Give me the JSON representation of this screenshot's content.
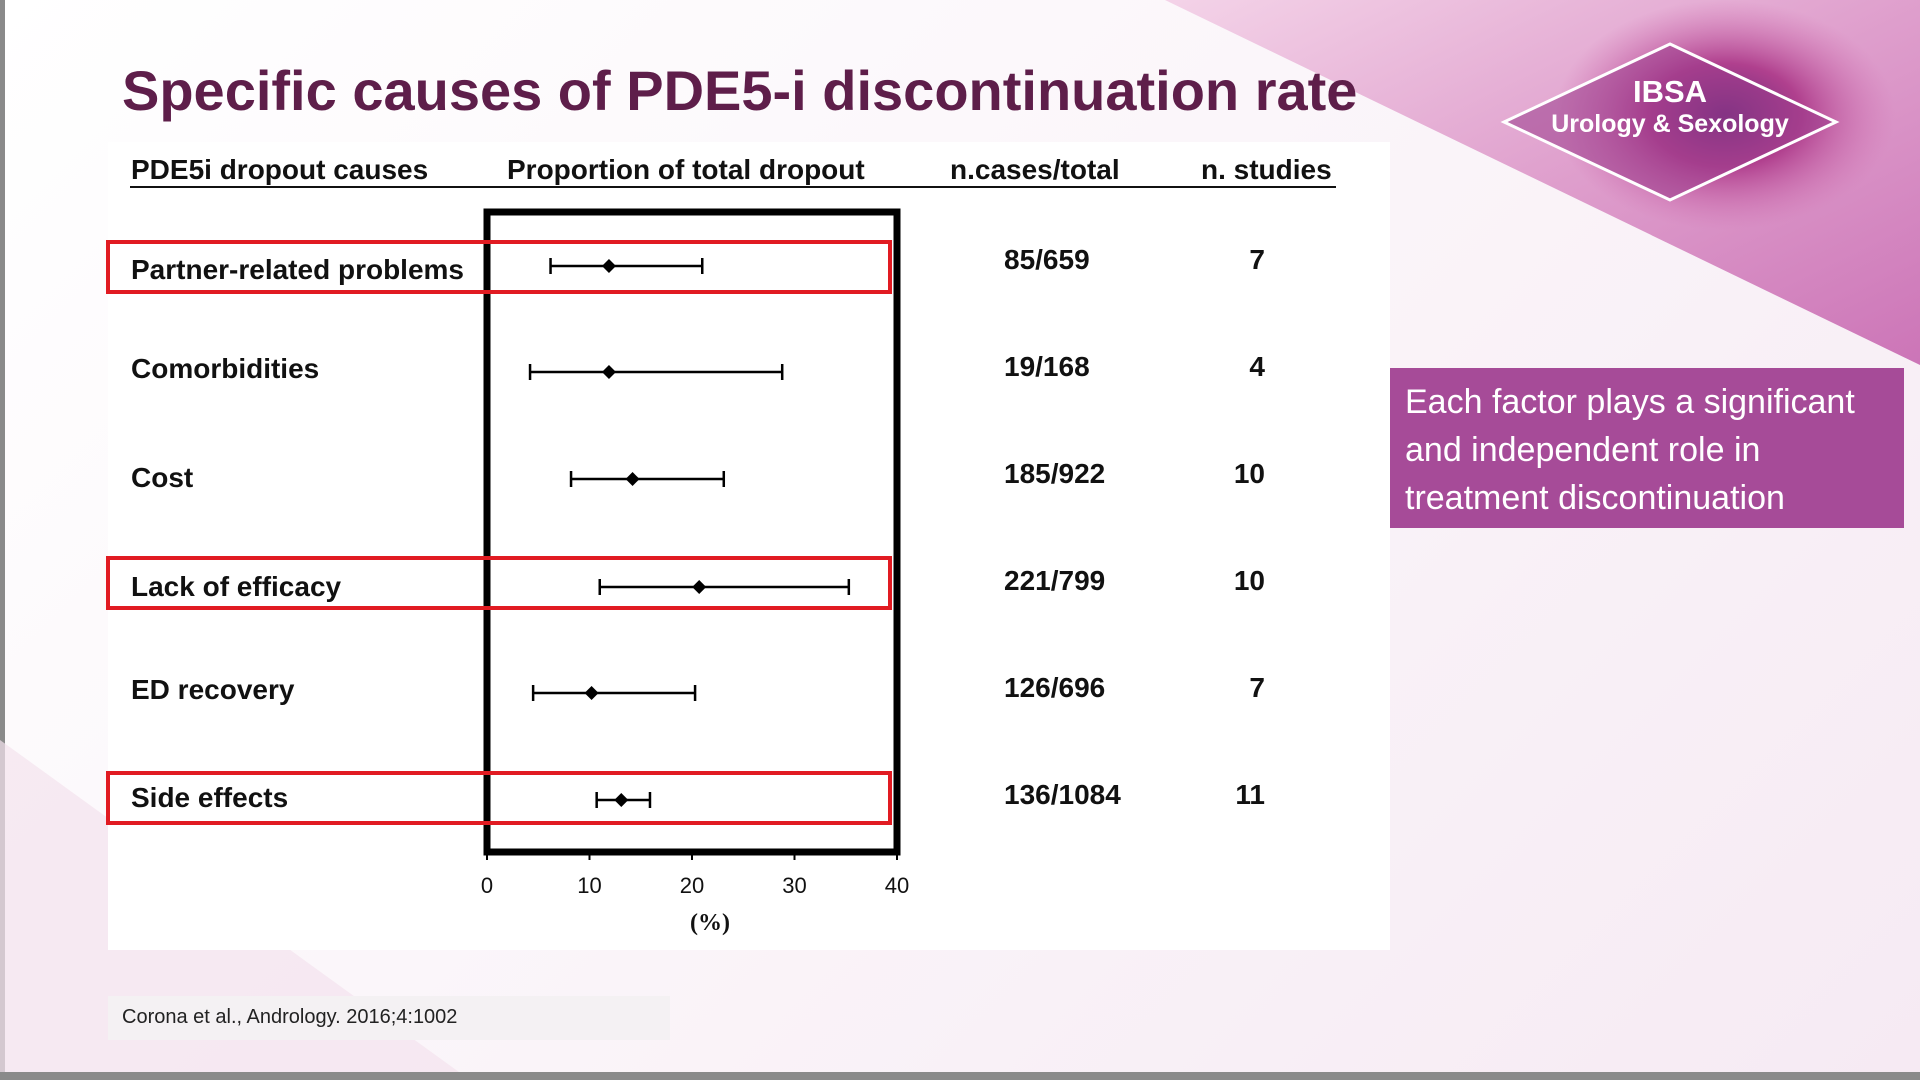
{
  "slide": {
    "title": "Specific causes of PDE5-i discontinuation rate",
    "accent_color": "#5e1e4a",
    "highlight_color": "#e11b22",
    "callout_color": "#a64b98"
  },
  "logo": {
    "line1": "IBSA",
    "line2": "Urology & Sexology"
  },
  "table": {
    "headers": {
      "causes": "PDE5i dropout causes",
      "proportion": "Proportion of total dropout",
      "cases": "n.cases/total",
      "studies": "n. studies"
    },
    "rows": [
      {
        "label": "Partner-related problems",
        "cases": "85/659",
        "studies": "7",
        "highlighted": true
      },
      {
        "label": "Comorbidities",
        "cases": "19/168",
        "studies": "4",
        "highlighted": false
      },
      {
        "label": "Cost",
        "cases": "185/922",
        "studies": "10",
        "highlighted": false
      },
      {
        "label": "Lack of efficacy",
        "cases": "221/799",
        "studies": "10",
        "highlighted": true
      },
      {
        "label": "ED recovery",
        "cases": "126/696",
        "studies": "7",
        "highlighted": false
      },
      {
        "label": "Side effects",
        "cases": "136/1084",
        "studies": "11",
        "highlighted": true
      }
    ]
  },
  "chart_data": {
    "type": "scatter",
    "categories": [
      "Partner-related problems",
      "Comorbidities",
      "Cost",
      "Lack of efficacy",
      "ED recovery",
      "Side effects"
    ],
    "series": [
      {
        "values": [
          11.9,
          11.9,
          14.2,
          20.7,
          10.2,
          13.1
        ],
        "ci_low": [
          6.2,
          4.2,
          8.2,
          11.0,
          4.5,
          10.7
        ],
        "ci_high": [
          21.0,
          28.8,
          23.1,
          35.3,
          20.3,
          15.9
        ]
      }
    ],
    "xlim": [
      0,
      40
    ],
    "xticks": [
      "0",
      "10",
      "20",
      "30",
      "40"
    ],
    "xlabel": "(%)",
    "ylabel": "",
    "title": "",
    "grid": false,
    "legend": "none"
  },
  "callout": {
    "text": "Each factor plays a significant and independent role in treatment discontinuation"
  },
  "citation": {
    "text": "Corona et al., Andrology. 2016;4:1002"
  }
}
